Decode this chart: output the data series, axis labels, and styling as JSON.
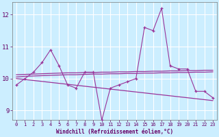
{
  "xlabel": "Windchill (Refroidissement éolien,°C)",
  "background_color": "#cceeff",
  "grid_color": "#ffffff",
  "line_color": "#993399",
  "x_values": [
    0,
    1,
    2,
    3,
    4,
    5,
    6,
    7,
    8,
    9,
    10,
    11,
    12,
    13,
    14,
    15,
    16,
    17,
    18,
    19,
    20,
    21,
    22,
    23
  ],
  "line1": [
    9.8,
    10.0,
    10.2,
    10.5,
    10.9,
    10.4,
    9.8,
    9.7,
    10.2,
    10.2,
    8.7,
    9.7,
    9.8,
    9.9,
    10.0,
    11.6,
    11.5,
    12.2,
    10.4,
    10.3,
    10.3,
    9.6,
    9.6,
    9.4
  ],
  "line2": [
    10.12,
    10.13,
    10.14,
    10.15,
    10.16,
    10.17,
    10.18,
    10.18,
    10.19,
    10.19,
    10.2,
    10.2,
    10.21,
    10.21,
    10.22,
    10.22,
    10.23,
    10.23,
    10.24,
    10.24,
    10.25,
    10.25,
    10.26,
    10.26
  ],
  "line3": [
    10.05,
    10.07,
    10.08,
    10.09,
    10.1,
    10.11,
    10.12,
    10.12,
    10.13,
    10.14,
    10.14,
    10.15,
    10.15,
    10.16,
    10.16,
    10.17,
    10.17,
    10.18,
    10.18,
    10.19,
    10.19,
    10.2,
    10.2,
    10.21
  ],
  "line4": [
    10.0,
    9.97,
    9.94,
    9.91,
    9.88,
    9.85,
    9.82,
    9.79,
    9.76,
    9.73,
    9.7,
    9.67,
    9.64,
    9.61,
    9.58,
    9.55,
    9.52,
    9.49,
    9.46,
    9.43,
    9.4,
    9.37,
    9.34,
    9.31
  ],
  "ylim": [
    8.7,
    12.4
  ],
  "xlim": [
    -0.5,
    23.5
  ],
  "yticks": [
    9,
    10,
    11,
    12
  ],
  "xticks": [
    0,
    1,
    2,
    3,
    4,
    5,
    6,
    7,
    8,
    9,
    10,
    11,
    12,
    13,
    14,
    15,
    16,
    17,
    18,
    19,
    20,
    21,
    22,
    23
  ]
}
